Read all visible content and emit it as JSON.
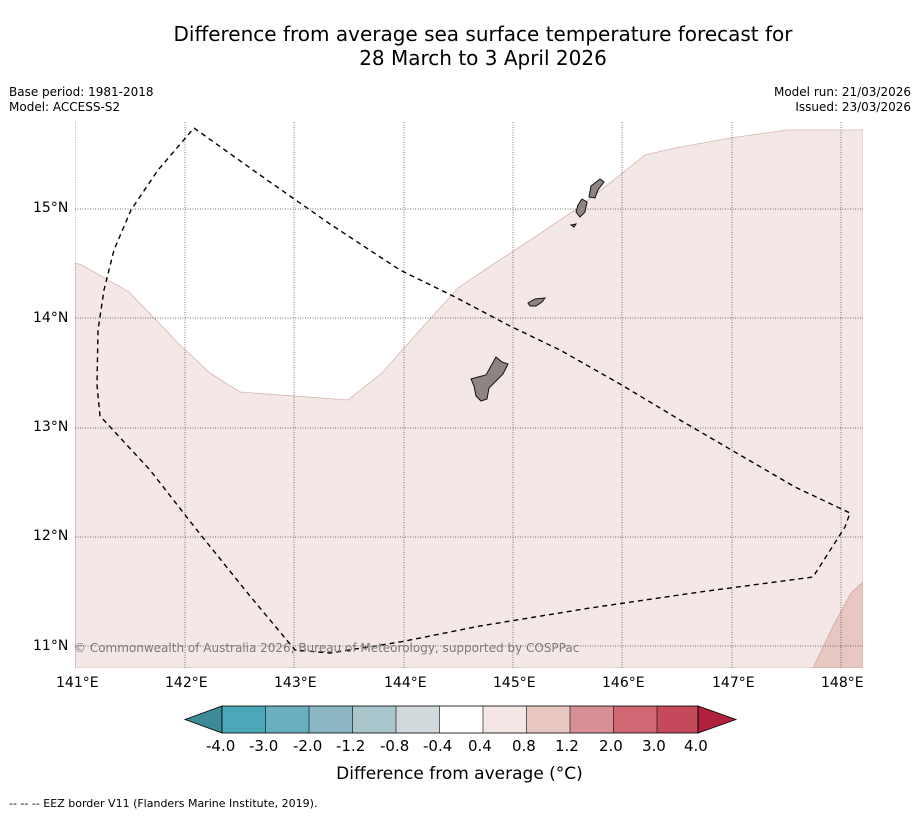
{
  "title": {
    "line1": "Difference from average sea surface temperature forecast for",
    "line2": "28 March to 3 April 2026"
  },
  "meta_left": {
    "base_period": "Base period: 1981-2018",
    "model": "Model: ACCESS-S2"
  },
  "meta_right": {
    "model_run": "Model run: 21/03/2026",
    "issued": "Issued: 23/03/2026"
  },
  "map": {
    "lon_labels": [
      "141°E",
      "142°E",
      "143°E",
      "144°E",
      "145°E",
      "146°E",
      "147°E",
      "148°E"
    ],
    "lat_labels": [
      "15°N",
      "14°N",
      "13°N",
      "12°N",
      "11°N"
    ],
    "copyright": "© Commonwealth of Australia 2026, Bureau of Meteorology, supported by COSPPac",
    "colors": {
      "anomaly_0_4_to_0_8": "#f4e8e6",
      "anomaly_0_8_to_1_2": "#e8c6c2",
      "land": "#8c8584",
      "eez_border": "#000000"
    }
  },
  "colorbar": {
    "ticks": [
      "-4.0",
      "-3.0",
      "-2.0",
      "-1.2",
      "-0.8",
      "-0.4",
      "0.4",
      "0.8",
      "1.2",
      "2.0",
      "3.0",
      "4.0"
    ],
    "colors": [
      "#3f8a99",
      "#4aa8b8",
      "#6aafbf",
      "#8ab7c3",
      "#a8c6cb",
      "#d2d9dc",
      "#ffffff",
      "#f4e6e5",
      "#e8c6c2",
      "#d98f96",
      "#cf6873",
      "#c44a5b",
      "#b0213e"
    ],
    "label": "Difference from average (°C)"
  },
  "legend": {
    "eez": "--  --  -- EEZ border V11 (Flanders Marine Institute, 2019)."
  }
}
